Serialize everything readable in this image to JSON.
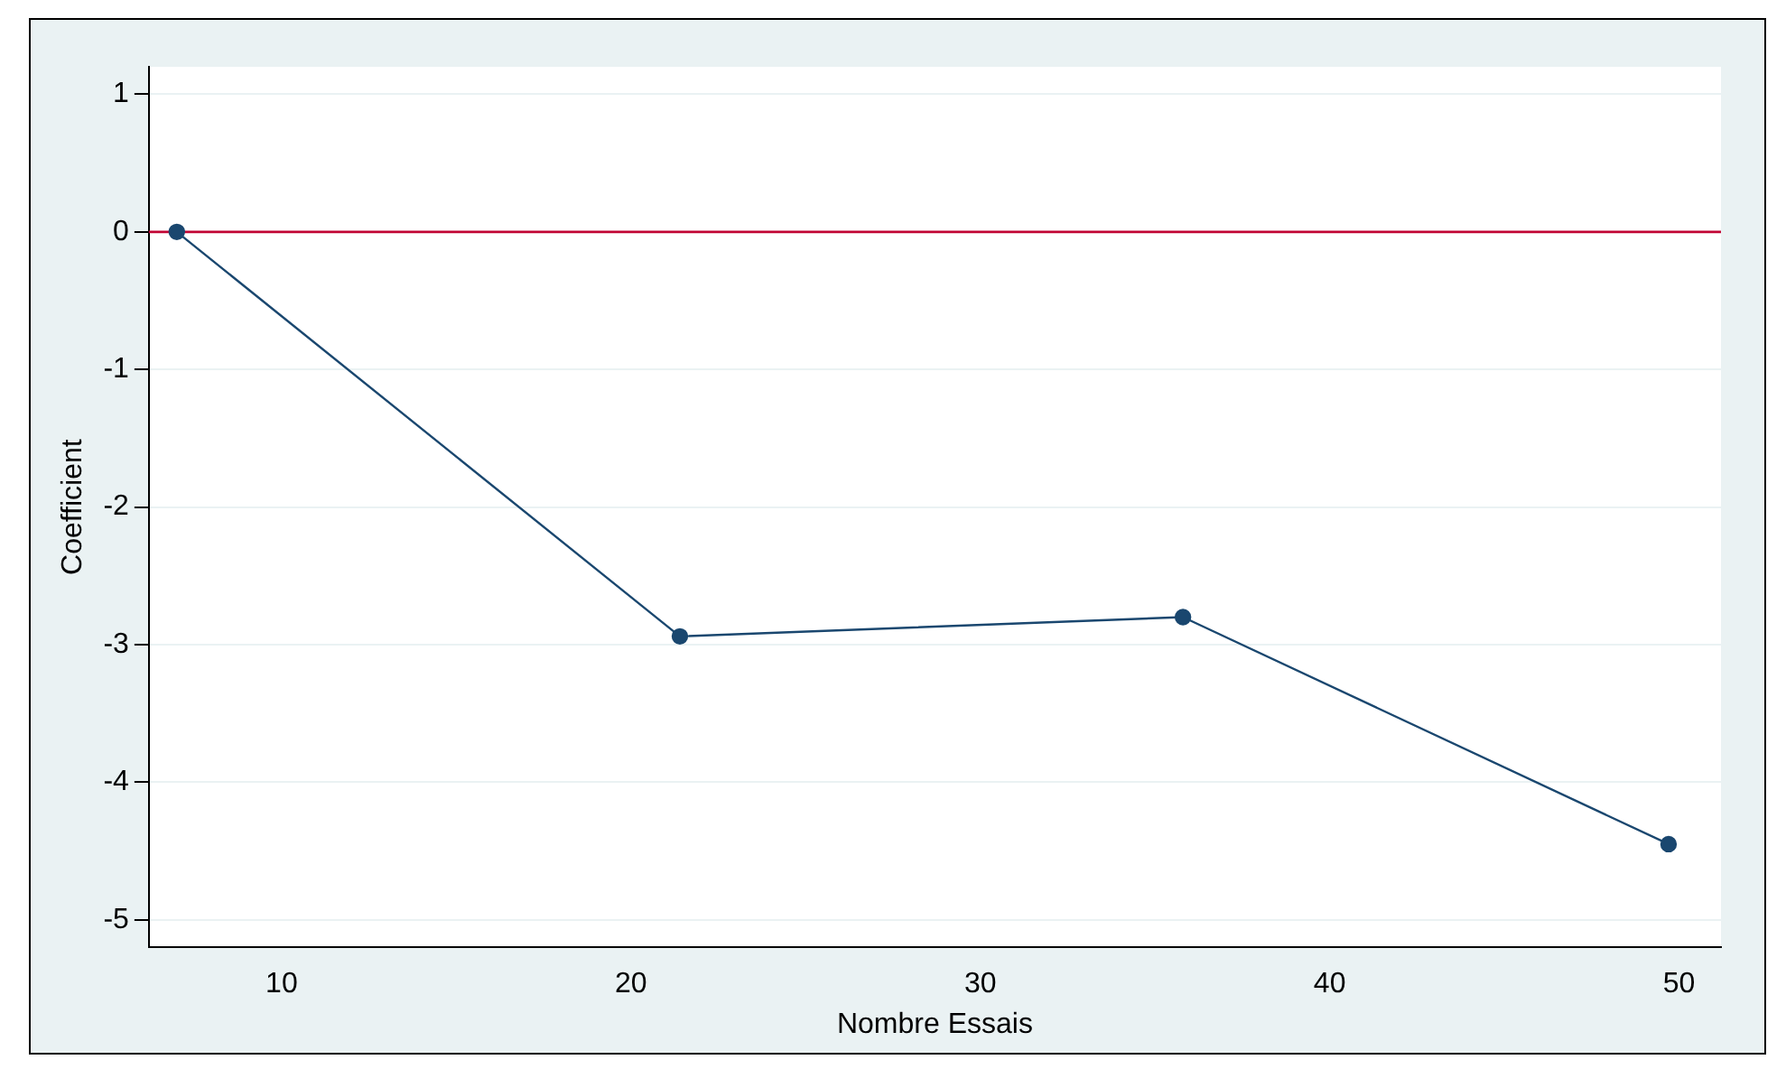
{
  "chart_data": {
    "type": "line",
    "xlabel": "Nombre Essais",
    "ylabel": "Coefficient",
    "x": [
      7,
      21.4,
      35.8,
      49.7
    ],
    "series": [
      {
        "color": "#1a476f",
        "values": [
          0,
          -2.94,
          -2.8,
          -4.45
        ]
      }
    ],
    "xlim": [
      6.2,
      51.2
    ],
    "xticks": [
      10,
      20,
      30,
      40,
      50
    ],
    "ylim": [
      -5.2,
      1.2
    ],
    "yticks": [
      -5,
      -4,
      -3,
      -2,
      -1,
      0,
      1
    ],
    "grid": "y",
    "marker": "circle",
    "line_style": "solid",
    "legend": false,
    "ref_lines": [
      {
        "axis": "y",
        "value": 0,
        "color": "#c10534"
      }
    ]
  }
}
